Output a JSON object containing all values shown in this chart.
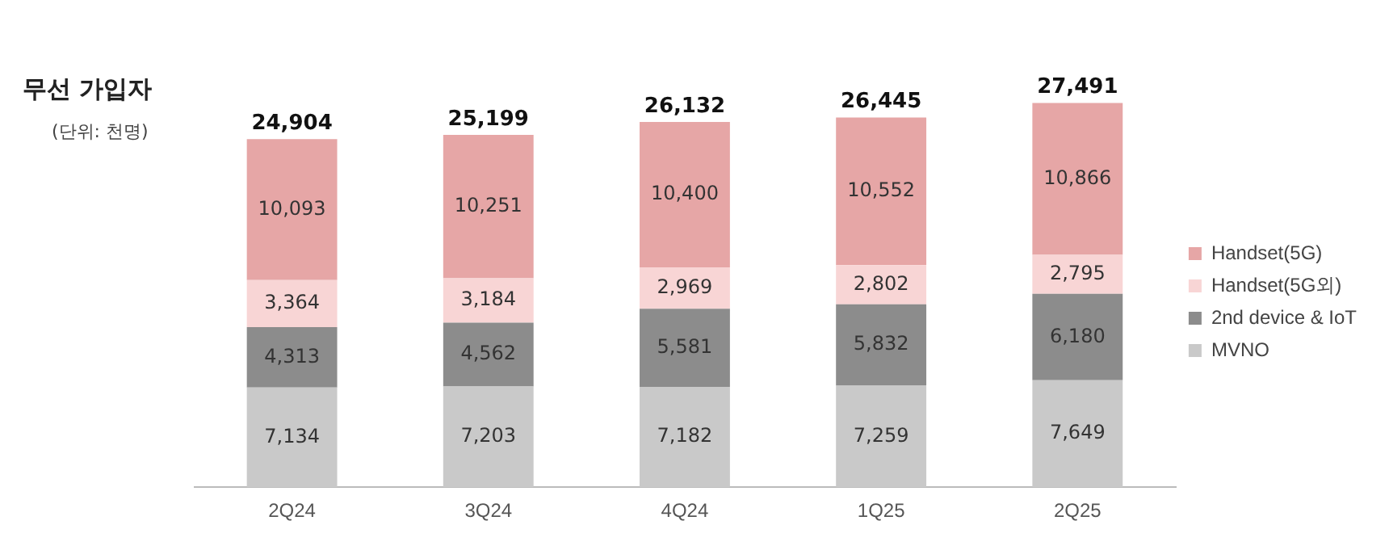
{
  "chart_data": {
    "type": "bar",
    "title": "무선 가입자",
    "subtitle": "(단위: 천명)",
    "categories": [
      "2Q24",
      "3Q24",
      "4Q24",
      "1Q25",
      "2Q25"
    ],
    "series": [
      {
        "name": "MVNO",
        "color": "#c9c9c9",
        "values": [
          7134,
          7203,
          7182,
          7259,
          7649
        ],
        "value_labels": [
          "7,134",
          "7,203",
          "7,182",
          "7,259",
          "7,649"
        ]
      },
      {
        "name": "2nd device & IoT",
        "color": "#8c8c8c",
        "values": [
          4313,
          4562,
          5581,
          5832,
          6180
        ],
        "value_labels": [
          "4,313",
          "4,562",
          "5,581",
          "5,832",
          "6,180"
        ]
      },
      {
        "name": "Handset(5G외)",
        "color": "#f8d5d5",
        "values": [
          3364,
          3184,
          2969,
          2802,
          2795
        ],
        "value_labels": [
          "3,364",
          "3,184",
          "2,969",
          "2,802",
          "2,795"
        ]
      },
      {
        "name": "Handset(5G)",
        "color": "#e6a6a6",
        "values": [
          10093,
          10251,
          10400,
          10552,
          10866
        ],
        "value_labels": [
          "10,093",
          "10,251",
          "10,400",
          "10,552",
          "10,866"
        ]
      }
    ],
    "stacked": true,
    "totals": [
      "24,904",
      "25,199",
      "26,132",
      "26,445",
      "27,491"
    ],
    "legend": "right",
    "grid": false,
    "tick_labels": "x"
  }
}
